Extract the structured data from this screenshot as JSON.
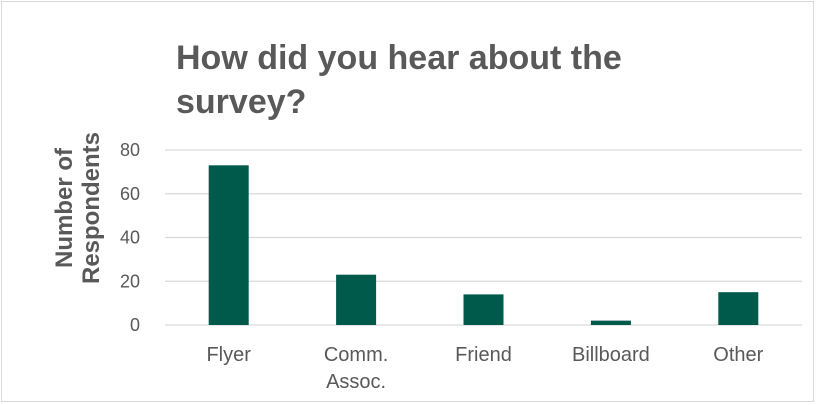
{
  "chart_data": {
    "type": "bar",
    "title": "How did you hear about the survey?",
    "ylabel": "Number of\nRespondents",
    "xlabel": "",
    "categories": [
      "Flyer",
      "Comm.\nAssoc.",
      "Friend",
      "Billboard",
      "Other"
    ],
    "values": [
      73,
      23,
      14,
      2,
      15
    ],
    "ylim": [
      0,
      80
    ],
    "yticks": [
      0,
      20,
      40,
      60,
      80
    ],
    "grid": true,
    "legend": "none",
    "bar_color": "#005a4c",
    "grid_color": "#d9d9d9",
    "text_color": "#595959"
  }
}
